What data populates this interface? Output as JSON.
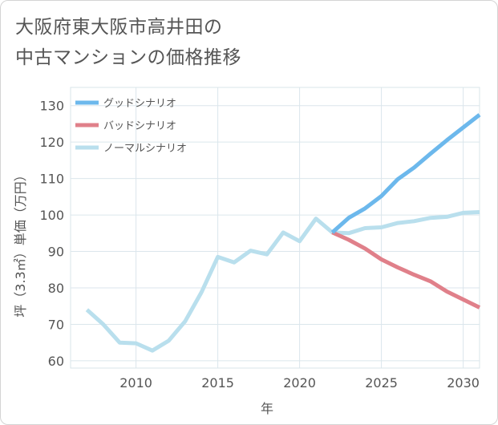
{
  "title_line1": "大阪府東大阪市高井田の",
  "title_line2": "中古マンションの価格推移",
  "chart_data": {
    "type": "line",
    "title": "大阪府東大阪市高井田の中古マンションの価格推移",
    "xlabel": "年",
    "ylabel": "坪（3.3㎡）単価（万円）",
    "xlim": [
      2006,
      2031
    ],
    "ylim": [
      58,
      135
    ],
    "xticks": [
      2010,
      2015,
      2020,
      2025,
      2030
    ],
    "yticks": [
      60,
      70,
      80,
      90,
      100,
      110,
      120,
      130
    ],
    "grid": true,
    "legend_position": "top-left",
    "series": [
      {
        "name": "グッドシナリオ",
        "color": "#6cb8ec",
        "x": [
          2022,
          2023,
          2024,
          2025,
          2026,
          2027,
          2028,
          2029,
          2030,
          2031
        ],
        "y": [
          95.2,
          99.2,
          101.8,
          105.2,
          109.8,
          113.0,
          116.8,
          120.5,
          124.0,
          127.5
        ]
      },
      {
        "name": "バッドシナリオ",
        "color": "#e0808a",
        "x": [
          2022,
          2023,
          2024,
          2025,
          2026,
          2027,
          2028,
          2029,
          2030,
          2031
        ],
        "y": [
          95.2,
          93.2,
          90.8,
          87.8,
          85.6,
          83.6,
          81.8,
          79.0,
          76.8,
          74.6
        ]
      },
      {
        "name": "ノーマルシナリオ",
        "color": "#b9dfed",
        "x": [
          2007,
          2008,
          2009,
          2010,
          2011,
          2012,
          2013,
          2014,
          2015,
          2016,
          2017,
          2018,
          2019,
          2020,
          2021,
          2022,
          2023,
          2024,
          2025,
          2026,
          2027,
          2028,
          2029,
          2030,
          2031
        ],
        "y": [
          74.0,
          70.0,
          65.0,
          64.8,
          62.8,
          65.5,
          70.8,
          78.8,
          88.5,
          87.0,
          90.2,
          89.2,
          95.2,
          92.8,
          99.0,
          95.2,
          95.0,
          96.4,
          96.6,
          97.8,
          98.3,
          99.2,
          99.5,
          100.6,
          100.8
        ]
      }
    ]
  }
}
